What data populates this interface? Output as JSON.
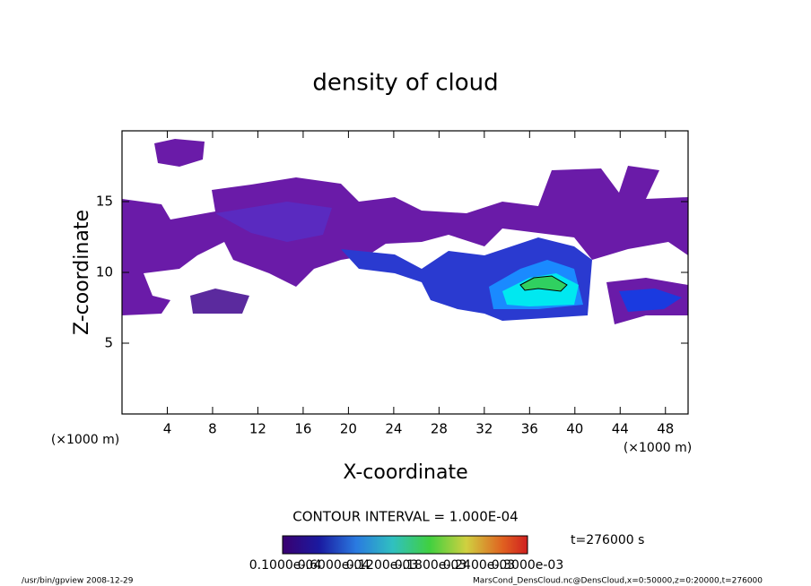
{
  "chart_data": {
    "type": "contour",
    "title": "density of cloud",
    "xlabel": "X-coordinate",
    "ylabel": "Z-coordinate",
    "xunit": "(×1000 m)",
    "yunit": "(×1000 m)",
    "xlim": [
      0,
      50
    ],
    "ylim": [
      0,
      20
    ],
    "xticks": [
      4,
      8,
      12,
      16,
      20,
      24,
      28,
      32,
      36,
      40,
      44,
      48
    ],
    "yticks": [
      5,
      10,
      15
    ],
    "contour_interval": "CONTOUR INTERVAL = 1.000E-04",
    "time": "t=276000 s",
    "colorbar_labels": [
      "0.1000e-04",
      "0.6000e-04",
      "0.1200e-03",
      "0.1800e-03",
      "0.2400e-03",
      "0.3000e-03"
    ]
  },
  "footer": {
    "left": "/usr/bin/gpview  2008-12-29",
    "right": "MarsCond_DensCloud.nc@DensCloud,x=0:50000,z=0:20000,t=276000"
  }
}
